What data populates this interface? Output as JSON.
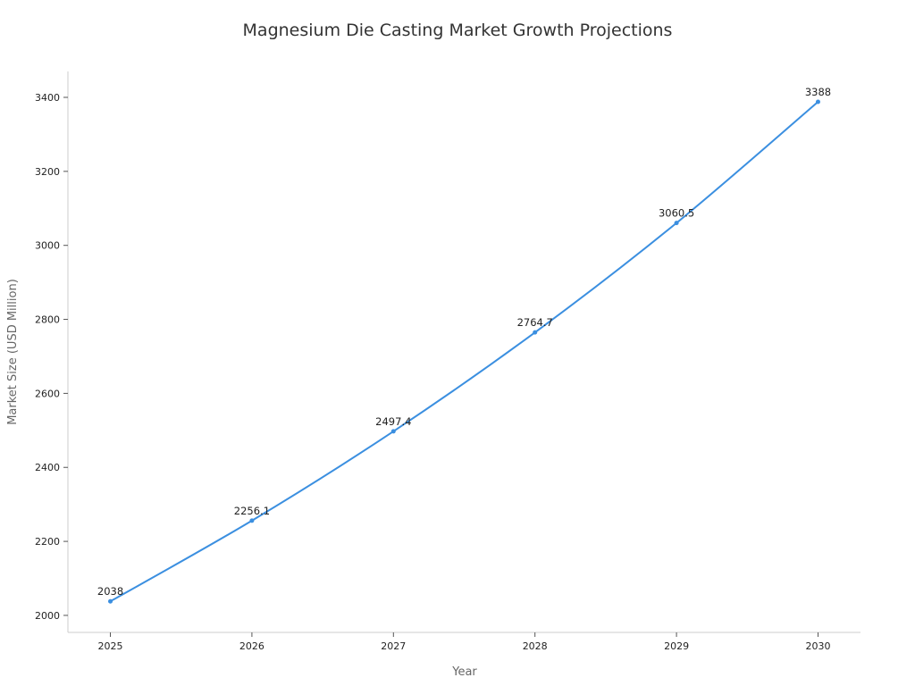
{
  "chart_data": {
    "type": "line",
    "title": "Magnesium Die Casting Market Growth Projections",
    "xlabel": "Year",
    "ylabel": "Market Size (USD Million)",
    "x": [
      2025,
      2026,
      2027,
      2028,
      2029,
      2030
    ],
    "series": [
      {
        "values": [
          2038,
          2256.1,
          2497.4,
          2764.7,
          3060.5,
          3388
        ],
        "labels": [
          "2038",
          "2256.1",
          "2497.4",
          "2764.7",
          "3060.5",
          "3388"
        ],
        "color": "#3b8fe0"
      }
    ],
    "xticks": [
      "2025",
      "2026",
      "2027",
      "2028",
      "2029",
      "2030"
    ],
    "yticks": [
      "2000",
      "2200",
      "2400",
      "2600",
      "2800",
      "3000",
      "3200",
      "3400"
    ],
    "xlim": [
      2024.7,
      2030.3
    ],
    "ylim": [
      1954,
      3470
    ],
    "grid": false,
    "legend": "none"
  }
}
